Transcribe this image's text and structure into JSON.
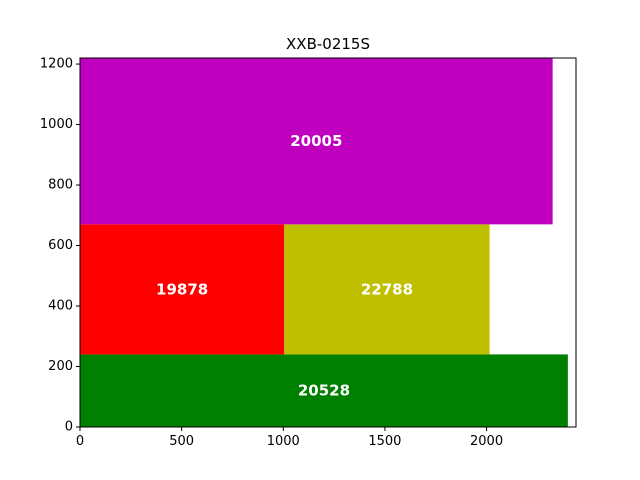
{
  "chart_data": {
    "type": "treemap-rectangles",
    "title": "XXB-0215S",
    "xlabel": "",
    "ylabel": "",
    "xlim": [
      0,
      2440
    ],
    "ylim": [
      0,
      1220
    ],
    "xticks": [
      0,
      500,
      1000,
      1500,
      2000
    ],
    "yticks": [
      0,
      200,
      400,
      600,
      800,
      1000,
      1200
    ],
    "grid": false,
    "rectangles": [
      {
        "label": "20528",
        "x0": 0,
        "y0": 0,
        "x1": 2400,
        "y1": 240,
        "color": "#008000"
      },
      {
        "label": "19878",
        "x0": 0,
        "y0": 240,
        "x1": 1005,
        "y1": 670,
        "color": "#ff0000"
      },
      {
        "label": "22788",
        "x0": 1005,
        "y0": 240,
        "x1": 2015,
        "y1": 670,
        "color": "#bfbf00"
      },
      {
        "label": "20005",
        "x0": 0,
        "y0": 670,
        "x1": 2325,
        "y1": 1220,
        "color": "#bf00bf"
      }
    ]
  }
}
